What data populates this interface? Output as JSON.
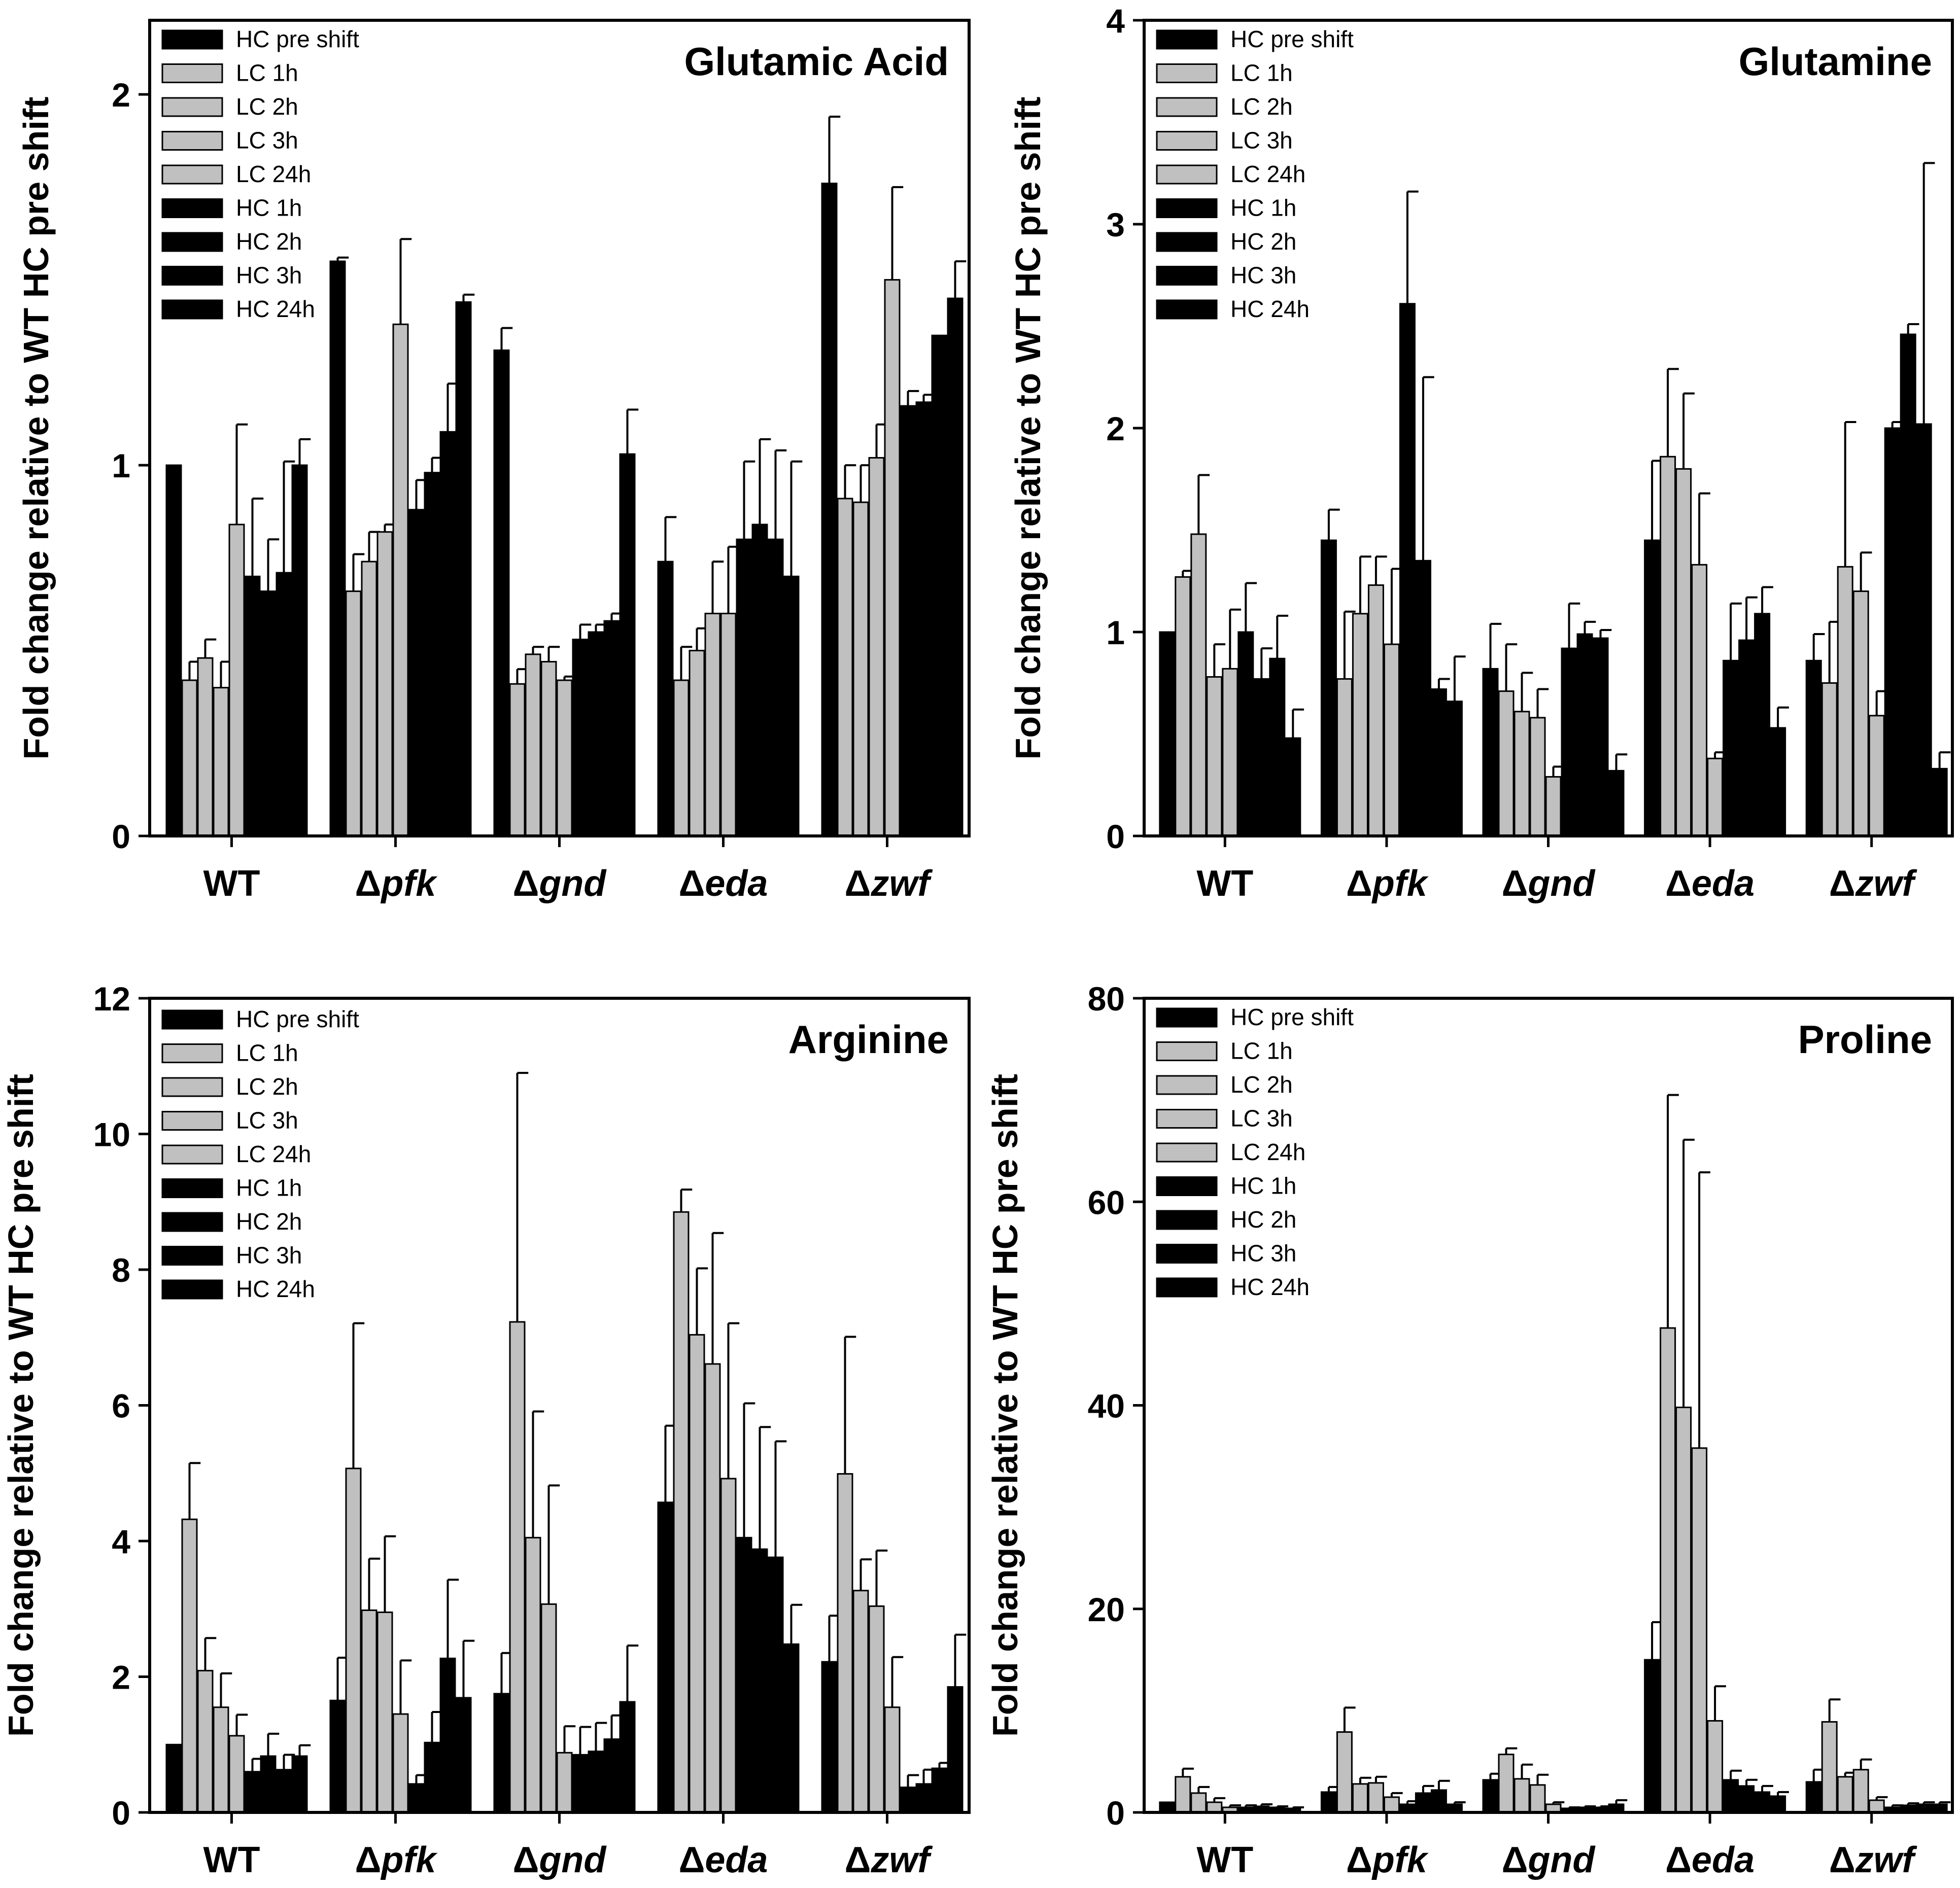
{
  "chart_data": [
    {
      "type": "bar",
      "title": "Glutamic Acid",
      "ylabel": "Fold change relative to WT HC pre shift",
      "xlabel": "",
      "ylim": [
        0,
        2.2
      ],
      "yticks": [
        0,
        1,
        2
      ],
      "categories": [
        "WT",
        "pfk",
        "gnd",
        "eda",
        "zwf"
      ],
      "category_prefix": "Δ",
      "series": [
        {
          "name": "HC pre shift",
          "color": "#000000",
          "values": [
            1.0,
            1.55,
            1.31,
            0.74,
            1.76
          ],
          "errors": [
            0.0,
            0.01,
            0.06,
            0.12,
            0.18
          ]
        },
        {
          "name": "LC 1h",
          "color": "#c0c0c0",
          "values": [
            0.42,
            0.66,
            0.41,
            0.42,
            0.91
          ],
          "errors": [
            0.05,
            0.1,
            0.04,
            0.09,
            0.09
          ]
        },
        {
          "name": "LC 2h",
          "color": "#c0c0c0",
          "values": [
            0.48,
            0.74,
            0.49,
            0.5,
            0.9
          ],
          "errors": [
            0.05,
            0.08,
            0.02,
            0.06,
            0.1
          ]
        },
        {
          "name": "LC 3h",
          "color": "#c0c0c0",
          "values": [
            0.4,
            0.82,
            0.47,
            0.6,
            1.02
          ],
          "errors": [
            0.07,
            0.02,
            0.04,
            0.14,
            0.09
          ]
        },
        {
          "name": "LC 24h",
          "color": "#c0c0c0",
          "values": [
            0.84,
            1.38,
            0.42,
            0.6,
            1.5
          ],
          "errors": [
            0.27,
            0.23,
            0.01,
            0.18,
            0.25
          ]
        },
        {
          "name": "HC 1h",
          "color": "#000000",
          "values": [
            0.7,
            0.88,
            0.53,
            0.8,
            1.16
          ],
          "errors": [
            0.21,
            0.08,
            0.04,
            0.21,
            0.04
          ]
        },
        {
          "name": "HC 2h",
          "color": "#000000",
          "values": [
            0.66,
            0.98,
            0.55,
            0.84,
            1.17
          ],
          "errors": [
            0.14,
            0.04,
            0.02,
            0.23,
            0.02
          ]
        },
        {
          "name": "HC 3h",
          "color": "#000000",
          "values": [
            0.71,
            1.09,
            0.58,
            0.8,
            1.35
          ],
          "errors": [
            0.3,
            0.13,
            0.02,
            0.24,
            0.0
          ]
        },
        {
          "name": "HC 24h",
          "color": "#000000",
          "values": [
            1.0,
            1.44,
            1.03,
            0.7,
            1.45
          ],
          "errors": [
            0.07,
            0.02,
            0.12,
            0.31,
            0.1
          ]
        }
      ]
    },
    {
      "type": "bar",
      "title": "Glutamine",
      "ylabel": "Fold change relative to WT HC pre shift",
      "xlabel": "",
      "ylim": [
        0,
        4
      ],
      "yticks": [
        0,
        1,
        2,
        3,
        4
      ],
      "categories": [
        "WT",
        "pfk",
        "gnd",
        "eda",
        "zwf"
      ],
      "category_prefix": "Δ",
      "series": [
        {
          "name": "HC pre shift",
          "color": "#000000",
          "values": [
            1.0,
            1.45,
            0.82,
            1.45,
            0.86
          ],
          "errors": [
            0.0,
            0.15,
            0.22,
            0.39,
            0.13
          ]
        },
        {
          "name": "LC 1h",
          "color": "#c0c0c0",
          "values": [
            1.27,
            0.77,
            0.71,
            1.86,
            0.75
          ],
          "errors": [
            0.03,
            0.33,
            0.23,
            0.43,
            0.3
          ]
        },
        {
          "name": "LC 2h",
          "color": "#c0c0c0",
          "values": [
            1.48,
            1.09,
            0.61,
            1.8,
            1.32
          ],
          "errors": [
            0.29,
            0.28,
            0.19,
            0.37,
            0.71
          ]
        },
        {
          "name": "LC 3h",
          "color": "#c0c0c0",
          "values": [
            0.78,
            1.23,
            0.58,
            1.33,
            1.2
          ],
          "errors": [
            0.16,
            0.14,
            0.14,
            0.35,
            0.19
          ]
        },
        {
          "name": "LC 24h",
          "color": "#c0c0c0",
          "values": [
            0.82,
            0.94,
            0.29,
            0.38,
            0.59
          ],
          "errors": [
            0.29,
            0.37,
            0.05,
            0.03,
            0.12
          ]
        },
        {
          "name": "HC 1h",
          "color": "#000000",
          "values": [
            1.0,
            2.61,
            0.92,
            0.86,
            2.0
          ],
          "errors": [
            0.24,
            0.55,
            0.22,
            0.28,
            0.03
          ]
        },
        {
          "name": "HC 2h",
          "color": "#000000",
          "values": [
            0.77,
            1.35,
            0.99,
            0.96,
            2.46
          ],
          "errors": [
            0.15,
            0.9,
            0.06,
            0.21,
            0.05
          ]
        },
        {
          "name": "HC 3h",
          "color": "#000000",
          "values": [
            0.87,
            0.72,
            0.97,
            1.09,
            2.02
          ],
          "errors": [
            0.21,
            0.05,
            0.04,
            0.13,
            1.28
          ]
        },
        {
          "name": "HC 24h",
          "color": "#000000",
          "values": [
            0.48,
            0.66,
            0.32,
            0.53,
            0.33
          ],
          "errors": [
            0.14,
            0.22,
            0.08,
            0.1,
            0.08
          ]
        }
      ]
    },
    {
      "type": "bar",
      "title": "Arginine",
      "ylabel": "Fold change relative to WT HC pre shift",
      "xlabel": "",
      "ylim": [
        0,
        12
      ],
      "yticks": [
        0,
        2,
        4,
        6,
        8,
        10,
        12
      ],
      "categories": [
        "WT",
        "pfk",
        "gnd",
        "eda",
        "zwf"
      ],
      "category_prefix": "Δ",
      "series": [
        {
          "name": "HC pre shift",
          "color": "#000000",
          "values": [
            1.0,
            1.65,
            1.75,
            4.57,
            2.22
          ],
          "errors": [
            0.0,
            0.63,
            0.6,
            1.13,
            0.68
          ]
        },
        {
          "name": "LC 1h",
          "color": "#c0c0c0",
          "values": [
            4.32,
            5.07,
            7.23,
            8.85,
            4.99
          ],
          "errors": [
            0.83,
            2.14,
            3.67,
            0.33,
            2.02
          ]
        },
        {
          "name": "LC 2h",
          "color": "#c0c0c0",
          "values": [
            2.09,
            2.98,
            4.05,
            7.04,
            3.27
          ],
          "errors": [
            0.48,
            0.76,
            1.86,
            0.98,
            0.46
          ]
        },
        {
          "name": "LC 3h",
          "color": "#c0c0c0",
          "values": [
            1.55,
            2.95,
            3.07,
            6.61,
            3.04
          ],
          "errors": [
            0.5,
            1.12,
            1.75,
            1.93,
            0.82
          ]
        },
        {
          "name": "LC 24h",
          "color": "#c0c0c0",
          "values": [
            1.13,
            1.45,
            0.88,
            4.92,
            1.55
          ],
          "errors": [
            0.31,
            0.79,
            0.39,
            2.29,
            0.74
          ]
        },
        {
          "name": "HC 1h",
          "color": "#000000",
          "values": [
            0.6,
            0.42,
            0.85,
            4.05,
            0.37
          ],
          "errors": [
            0.19,
            0.13,
            0.41,
            1.98,
            0.18
          ]
        },
        {
          "name": "HC 2h",
          "color": "#000000",
          "values": [
            0.83,
            1.03,
            0.9,
            3.88,
            0.42
          ],
          "errors": [
            0.33,
            0.45,
            0.42,
            1.8,
            0.21
          ]
        },
        {
          "name": "HC 3h",
          "color": "#000000",
          "values": [
            0.63,
            2.27,
            1.08,
            3.76,
            0.65
          ],
          "errors": [
            0.22,
            1.16,
            0.35,
            1.71,
            0.08
          ]
        },
        {
          "name": "HC 24h",
          "color": "#000000",
          "values": [
            0.83,
            1.69,
            1.63,
            2.48,
            1.85
          ],
          "errors": [
            0.16,
            0.84,
            0.83,
            0.58,
            0.77
          ]
        }
      ]
    },
    {
      "type": "bar",
      "title": "Proline",
      "ylabel": "Fold change relative to WT HC pre shift",
      "xlabel": "",
      "ylim": [
        0,
        80
      ],
      "yticks": [
        0,
        20,
        40,
        60,
        80
      ],
      "categories": [
        "WT",
        "pfk",
        "gnd",
        "eda",
        "zwf"
      ],
      "category_prefix": "Δ",
      "series": [
        {
          "name": "HC pre shift",
          "color": "#000000",
          "values": [
            1.0,
            2.0,
            3.2,
            15.0,
            3.0
          ],
          "errors": [
            0.0,
            0.5,
            0.6,
            3.7,
            1.2
          ]
        },
        {
          "name": "LC 1h",
          "color": "#c0c0c0",
          "values": [
            3.5,
            7.9,
            5.7,
            47.6,
            8.9
          ],
          "errors": [
            0.8,
            2.4,
            0.6,
            22.9,
            2.2
          ]
        },
        {
          "name": "LC 2h",
          "color": "#c0c0c0",
          "values": [
            1.9,
            2.8,
            3.3,
            39.8,
            3.5
          ],
          "errors": [
            0.6,
            0.6,
            1.4,
            26.3,
            0.4
          ]
        },
        {
          "name": "LC 3h",
          "color": "#c0c0c0",
          "values": [
            1.0,
            2.9,
            2.7,
            35.8,
            4.2
          ],
          "errors": [
            0.4,
            0.6,
            1.0,
            27.1,
            1.0
          ]
        },
        {
          "name": "LC 24h",
          "color": "#c0c0c0",
          "values": [
            0.5,
            1.5,
            0.8,
            9.0,
            1.2
          ],
          "errors": [
            0.2,
            0.4,
            0.2,
            3.4,
            0.3
          ]
        },
        {
          "name": "HC 1h",
          "color": "#000000",
          "values": [
            0.5,
            0.8,
            0.4,
            3.2,
            0.5
          ],
          "errors": [
            0.2,
            0.3,
            0.1,
            0.9,
            0.2
          ]
        },
        {
          "name": "HC 2h",
          "color": "#000000",
          "values": [
            0.6,
            1.9,
            0.5,
            2.6,
            0.7
          ],
          "errors": [
            0.2,
            0.7,
            0.1,
            0.6,
            0.2
          ]
        },
        {
          "name": "HC 3h",
          "color": "#000000",
          "values": [
            0.5,
            2.2,
            0.5,
            2.0,
            0.8
          ],
          "errors": [
            0.1,
            0.9,
            0.1,
            0.6,
            0.2
          ]
        },
        {
          "name": "HC 24h",
          "color": "#000000",
          "values": [
            0.4,
            0.8,
            0.8,
            1.6,
            0.8
          ],
          "errors": [
            0.1,
            0.2,
            0.4,
            0.4,
            0.2
          ]
        }
      ]
    }
  ]
}
